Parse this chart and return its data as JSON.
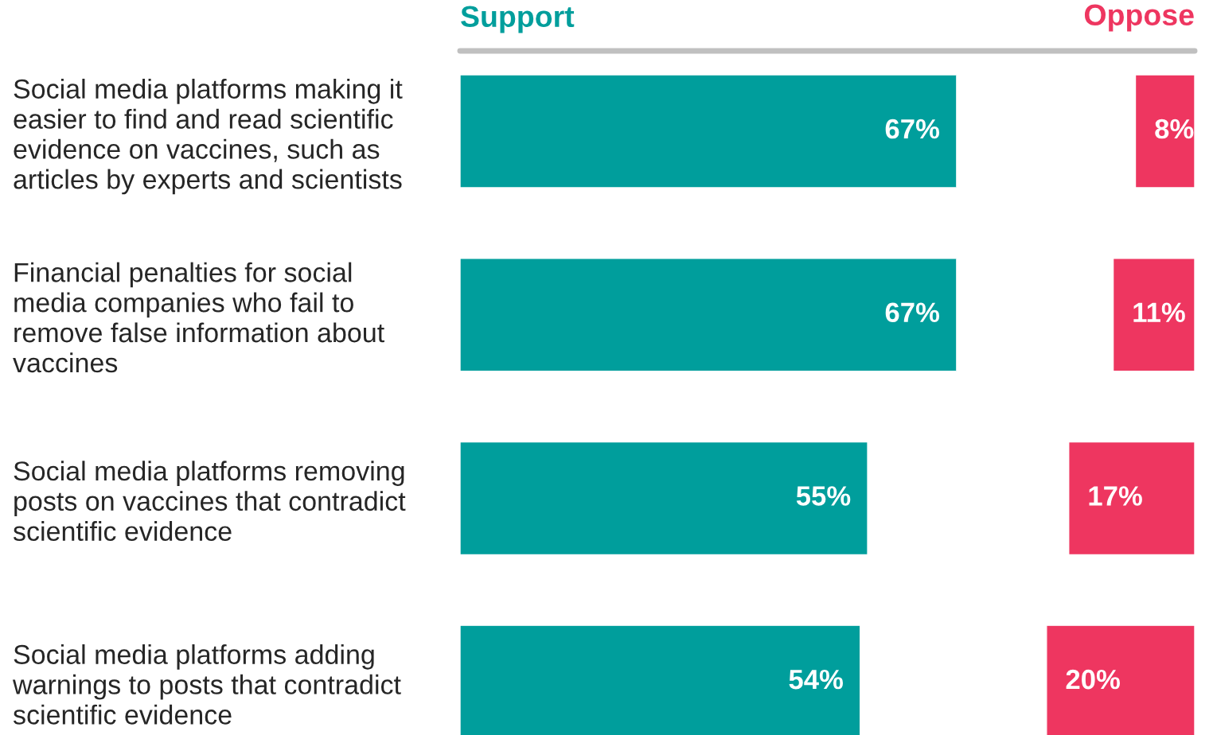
{
  "chart_data": [
    {
      "type": "bar",
      "orientation": "horizontal",
      "categories": [
        "Social media platforms making it\neasier to find and read scientific\nevidence on vaccines, such as\narticles by experts and scientists",
        "Financial penalties for social\nmedia companies who fail to\nremove false information about\nvaccines",
        "Social media platforms removing\nposts on vaccines that contradict\nscientific evidence",
        "Social media platforms adding\nwarnings to posts that contradict\nscientific evidence"
      ],
      "series": [
        {
          "name": "Support",
          "color": "#009e9c",
          "values": [
            67,
            67,
            55,
            54
          ],
          "value_labels": [
            "67%",
            "67%",
            "55%",
            "54%"
          ]
        }
      ],
      "tick_labels": "y",
      "legend": false
    },
    {
      "type": "bar",
      "orientation": "horizontal",
      "categories": [
        null,
        null,
        null,
        null
      ],
      "series": [
        {
          "name": "Oppose",
          "color": "#ee3660",
          "values": [
            8,
            11,
            17,
            20
          ],
          "value_labels": [
            "8%",
            "11%",
            "17%",
            "20%"
          ]
        }
      ],
      "tick_labels": false,
      "legend": false
    }
  ]
}
